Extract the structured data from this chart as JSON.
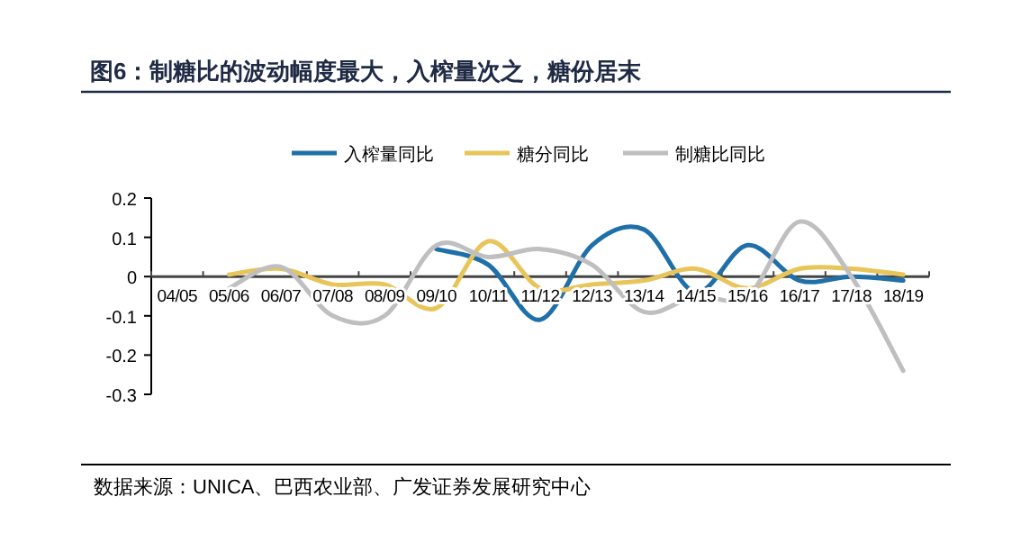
{
  "chart_data": {
    "type": "line",
    "title": "图6：制糖比的波动幅度最大，入榨量次之，糖份居末",
    "categories": [
      "04/05",
      "05/06",
      "06/07",
      "07/08",
      "08/09",
      "09/10",
      "10/11",
      "11/12",
      "12/13",
      "13/14",
      "14/15",
      "15/16",
      "16/17",
      "17/18",
      "18/19"
    ],
    "series": [
      {
        "name": "入榨量同比",
        "color": "#1f6fa8",
        "values": [
          null,
          null,
          null,
          null,
          null,
          0.07,
          0.03,
          -0.11,
          0.08,
          0.12,
          -0.04,
          0.08,
          -0.01,
          0.0,
          -0.01
        ]
      },
      {
        "name": "糖分同比",
        "color": "#e8c55a",
        "values": [
          null,
          0.005,
          0.02,
          -0.02,
          -0.02,
          -0.08,
          0.09,
          -0.03,
          -0.02,
          -0.01,
          0.02,
          -0.03,
          0.02,
          0.02,
          0.005
        ]
      },
      {
        "name": "制糖比同比",
        "color": "#bfbfbf",
        "values": [
          null,
          -0.03,
          0.025,
          -0.1,
          -0.1,
          0.08,
          0.05,
          0.07,
          0.03,
          -0.09,
          -0.05,
          -0.05,
          0.14,
          0.0,
          -0.24
        ]
      }
    ],
    "ylim": [
      -0.3,
      0.2
    ],
    "yticks": [
      -0.3,
      -0.2,
      -0.1,
      0,
      0.1,
      0.2
    ],
    "grid": false,
    "legend": "top",
    "annotations": [
      "数据来源：UNICA、巴西农业部、广发证券发展研究中心"
    ]
  }
}
